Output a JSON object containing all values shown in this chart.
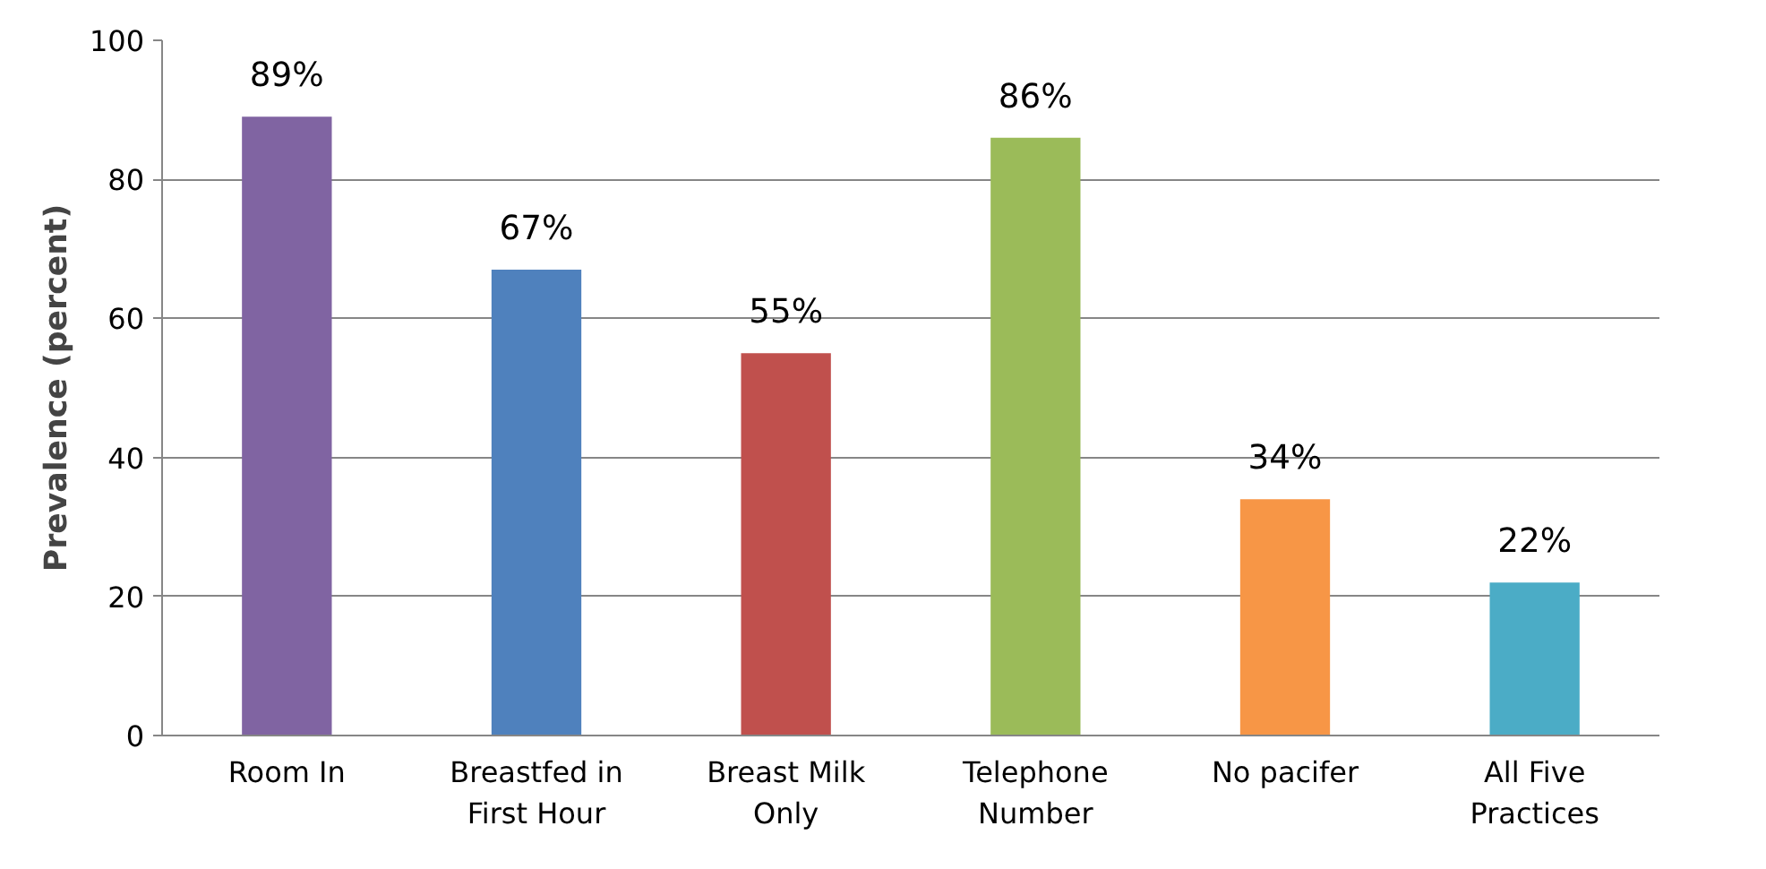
{
  "chart_data": {
    "type": "bar",
    "ylabel": "Prevalence (percent)",
    "categories": [
      "Room In",
      "Breastfed in First Hour",
      "Breast Milk Only",
      "Telephone Number",
      "No pacifer",
      "All Five Practices"
    ],
    "values": [
      89,
      67,
      55,
      86,
      34,
      22
    ],
    "colors": [
      "#8064a2",
      "#4f81bd",
      "#c0504d",
      "#9bbb59",
      "#f79646",
      "#4bacc6"
    ],
    "value_labels": [
      "89%",
      "67%",
      "55%",
      "86%",
      "34%",
      "22%"
    ],
    "ylim": [
      0,
      100
    ],
    "yticks": [
      0,
      20,
      40,
      60,
      80,
      100
    ],
    "grid": "y"
  }
}
